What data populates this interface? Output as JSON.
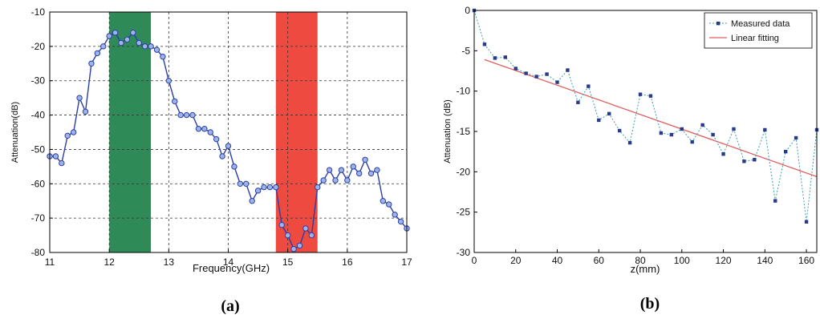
{
  "chart_data": [
    {
      "type": "line",
      "caption": "(a)",
      "xlabel": "Frequency(GHz)",
      "ylabel": "Attenuation(dB)",
      "xlim": [
        11,
        17
      ],
      "ylim": [
        -80,
        -10
      ],
      "xticks": [
        "11",
        "12",
        "13",
        "14",
        "15",
        "16",
        "17"
      ],
      "yticks": [
        "-10",
        "-20",
        "-30",
        "-40",
        "-50",
        "-60",
        "-70",
        "-80"
      ],
      "grid": true,
      "highlight_bands": [
        {
          "x_start": 12.0,
          "x_end": 12.7,
          "color": "#2e8b57"
        },
        {
          "x_start": 14.8,
          "x_end": 15.5,
          "color": "#ee4a3f"
        }
      ],
      "series": [
        {
          "color": "#2b3fa6",
          "marker": "circle",
          "x": [
            11.0,
            11.1,
            11.2,
            11.3,
            11.4,
            11.5,
            11.6,
            11.7,
            11.8,
            11.9,
            12.0,
            12.1,
            12.2,
            12.3,
            12.4,
            12.5,
            12.6,
            12.7,
            12.8,
            12.9,
            13.0,
            13.1,
            13.2,
            13.3,
            13.4,
            13.5,
            13.6,
            13.7,
            13.8,
            13.9,
            14.0,
            14.1,
            14.2,
            14.3,
            14.4,
            14.5,
            14.6,
            14.7,
            14.8,
            14.9,
            15.0,
            15.1,
            15.2,
            15.3,
            15.4,
            15.5,
            15.6,
            15.7,
            15.8,
            15.9,
            16.0,
            16.1,
            16.2,
            16.3,
            16.4,
            16.5,
            16.6,
            16.7,
            16.8,
            16.9,
            17.0
          ],
          "y": [
            -52,
            -52,
            -54,
            -46,
            -45,
            -35,
            -39,
            -25,
            -22,
            -20,
            -17,
            -16,
            -19,
            -18,
            -16,
            -19,
            -20,
            -20,
            -21,
            -23,
            -30,
            -36,
            -40,
            -40,
            -40,
            -44,
            -44,
            -45,
            -47,
            -52,
            -49,
            -55,
            -60,
            -60,
            -65,
            -62,
            -61,
            -61,
            -61,
            -72,
            -75,
            -79,
            -78,
            -73,
            -75,
            -61,
            -59,
            -56,
            -59,
            -56,
            -59,
            -55,
            -57,
            -53,
            -57,
            -56,
            -65,
            -66,
            -69,
            -71,
            -73
          ]
        }
      ]
    },
    {
      "type": "scatter",
      "caption": "(b)",
      "xlabel": "z(mm)",
      "ylabel": "Attenuation (dB)",
      "xlim": [
        0,
        165
      ],
      "ylim": [
        -30,
        0
      ],
      "xticks": [
        "0",
        "20",
        "40",
        "60",
        "80",
        "100",
        "120",
        "140",
        "160"
      ],
      "yticks": [
        "0",
        "-5",
        "-10",
        "-15",
        "-20",
        "-25",
        "-30"
      ],
      "grid": false,
      "legend_position": "top-right",
      "series": [
        {
          "name": "Measured data",
          "color": "#2a3a8a",
          "line_color": "#3ba0b5",
          "marker": "square",
          "x": [
            0,
            5,
            10,
            15,
            20,
            25,
            30,
            35,
            40,
            45,
            50,
            55,
            60,
            65,
            70,
            75,
            80,
            85,
            90,
            95,
            100,
            105,
            110,
            115,
            120,
            125,
            130,
            135,
            140,
            145,
            150,
            155,
            160,
            165
          ],
          "y": [
            0,
            -4.2,
            -5.9,
            -5.8,
            -7.2,
            -7.8,
            -8.2,
            -7.9,
            -8.9,
            -7.4,
            -11.4,
            -9.4,
            -13.6,
            -12.8,
            -14.9,
            -16.4,
            -10.4,
            -10.6,
            -15.2,
            -15.4,
            -14.7,
            -16.3,
            -14.2,
            -15.4,
            -17.8,
            -14.7,
            -18.7,
            -18.5,
            -14.8,
            -23.6,
            -17.5,
            -15.8,
            -26.2,
            -14.8
          ]
        },
        {
          "name": "Linear fitting",
          "color": "#e06060",
          "x": [
            5,
            165
          ],
          "y": [
            -6.1,
            -20.6
          ]
        }
      ]
    }
  ]
}
